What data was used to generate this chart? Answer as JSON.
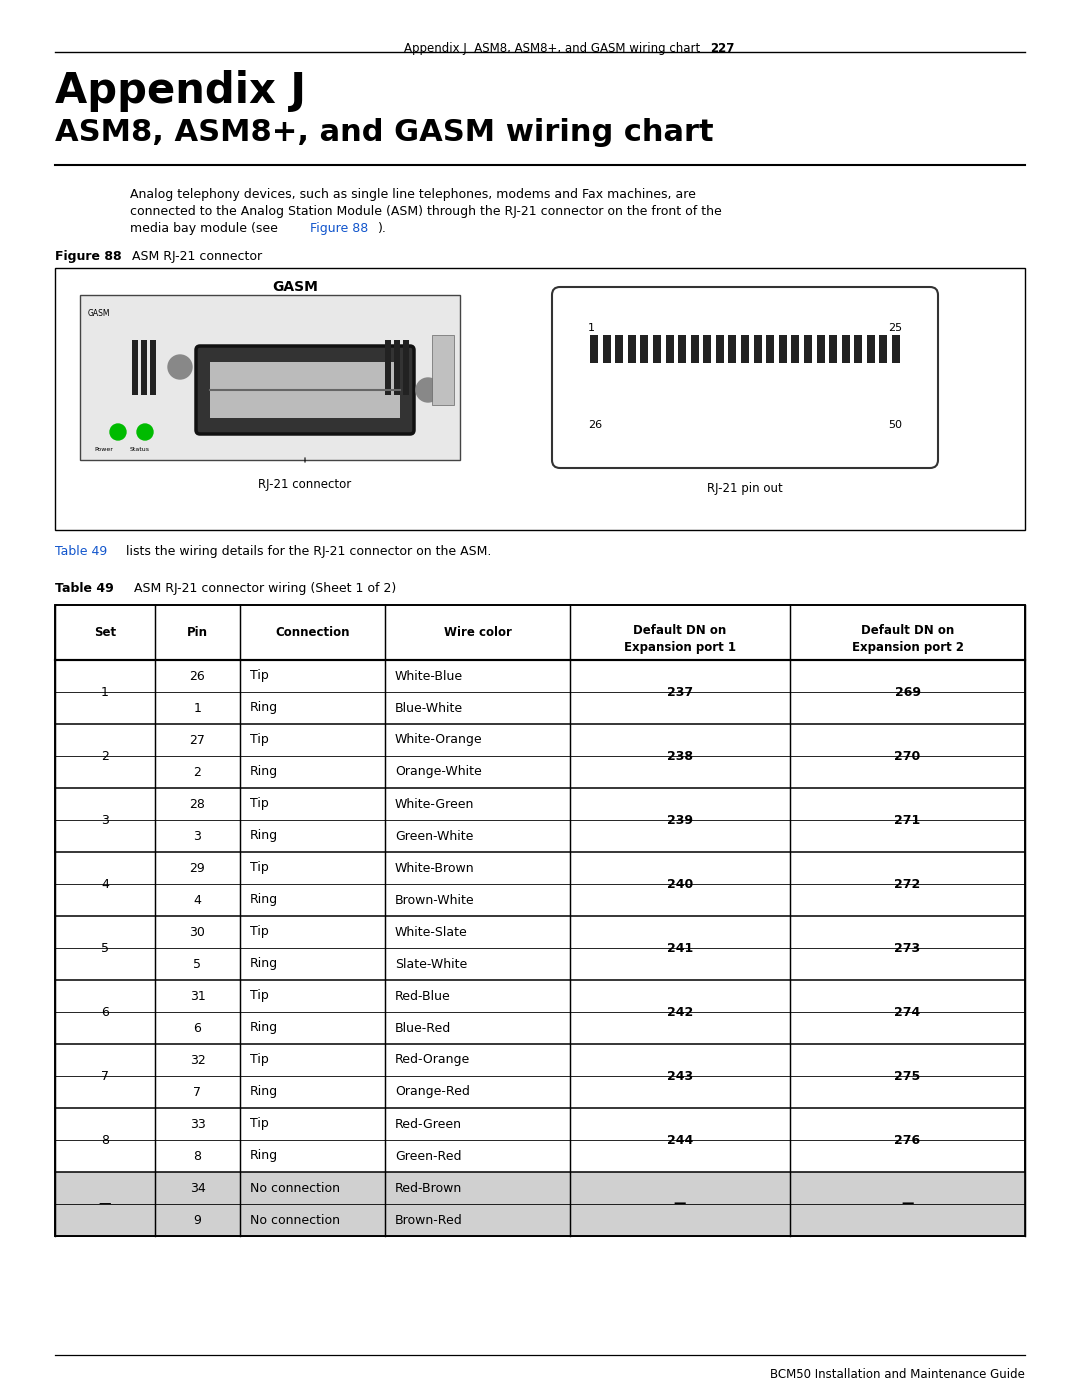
{
  "header_text_left": "Appendix J  ASM8, ASM8+, and GASM wiring chart",
  "header_page": "227",
  "title_line1": "Appendix J",
  "title_line2": "ASM8, ASM8+, and GASM wiring chart",
  "body_line1": "Analog telephony devices, such as single line telephones, modems and Fax machines, are",
  "body_line2": "connected to the Analog Station Module (ASM) through the RJ-21 connector on the front of the",
  "body_line3_pre": "media bay module (see ",
  "body_line3_link": "Figure 88",
  "body_line3_post": ").",
  "figure_label_bold": "Figure 88",
  "figure_label_rest": "   ASM RJ-21 connector",
  "gasm_title": "GASM",
  "rj21_connector_label": "RJ-21 connector",
  "rj21_pinout_label": "RJ-21 pin out",
  "pin_labels": [
    "1",
    "25",
    "26",
    "50"
  ],
  "table_ref_blue": "Table 49",
  "table_ref_rest": " lists the wiring details for the RJ-21 connector on the ASM.",
  "table_caption_bold": "Table 49",
  "table_caption_rest": "   ASM RJ-21 connector wiring (Sheet 1 of 2)",
  "col_headers": [
    "Set",
    "Pin",
    "Connection",
    "Wire color",
    "Default DN on\nExpansion port 1",
    "Default DN on\nExpansion port 2"
  ],
  "rows": [
    [
      "1",
      "26",
      "Tip",
      "White-Blue",
      "237",
      "269"
    ],
    [
      "1",
      "1",
      "Ring",
      "Blue-White",
      "237",
      "269"
    ],
    [
      "2",
      "27",
      "Tip",
      "White-Orange",
      "238",
      "270"
    ],
    [
      "2",
      "2",
      "Ring",
      "Orange-White",
      "238",
      "270"
    ],
    [
      "3",
      "28",
      "Tip",
      "White-Green",
      "239",
      "271"
    ],
    [
      "3",
      "3",
      "Ring",
      "Green-White",
      "239",
      "271"
    ],
    [
      "4",
      "29",
      "Tip",
      "White-Brown",
      "240",
      "272"
    ],
    [
      "4",
      "4",
      "Ring",
      "Brown-White",
      "240",
      "272"
    ],
    [
      "5",
      "30",
      "Tip",
      "White-Slate",
      "241",
      "273"
    ],
    [
      "5",
      "5",
      "Ring",
      "Slate-White",
      "241",
      "273"
    ],
    [
      "6",
      "31",
      "Tip",
      "Red-Blue",
      "242",
      "274"
    ],
    [
      "6",
      "6",
      "Ring",
      "Blue-Red",
      "242",
      "274"
    ],
    [
      "7",
      "32",
      "Tip",
      "Red-Orange",
      "243",
      "275"
    ],
    [
      "7",
      "7",
      "Ring",
      "Orange-Red",
      "243",
      "275"
    ],
    [
      "8",
      "33",
      "Tip",
      "Red-Green",
      "244",
      "276"
    ],
    [
      "8",
      "8",
      "Ring",
      "Green-Red",
      "244",
      "276"
    ],
    [
      "—",
      "34",
      "No connection",
      "Red-Brown",
      "—",
      "—"
    ],
    [
      "—",
      "9",
      "No connection",
      "Brown-Red",
      "—",
      "—"
    ]
  ],
  "footer_text": "BCM50 Installation and Maintenance Guide",
  "bg_color": "#ffffff",
  "link_color": "#1155cc",
  "gray_color": "#d0d0d0",
  "border_color": "#000000"
}
